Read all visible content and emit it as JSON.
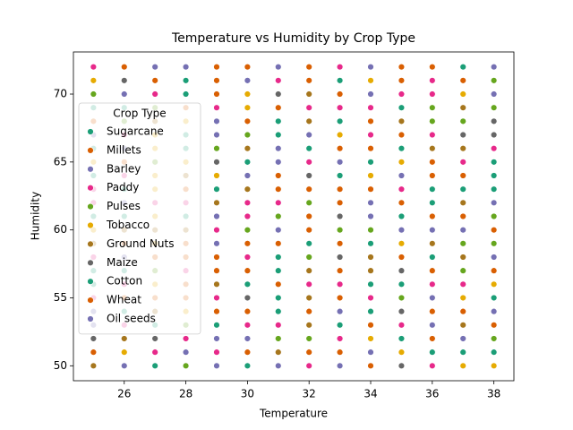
{
  "chart_data": {
    "type": "scatter",
    "title": "Temperature vs Humidity by Crop Type",
    "x_label": "Temperature",
    "y_label": "Humidity",
    "xlim": [
      24.35,
      38.65
    ],
    "ylim": [
      48.9,
      73.1
    ],
    "xticks": [
      26,
      28,
      30,
      32,
      34,
      36,
      38
    ],
    "yticks": [
      50,
      55,
      60,
      65,
      70
    ],
    "legend_title": "Crop Type",
    "legend_position": "upper-left",
    "series": [
      {
        "name": "Sugarcane",
        "color": "#1b9e77",
        "x": [
          26,
          26,
          26,
          26,
          26,
          28,
          28,
          28,
          28,
          28,
          30,
          30,
          30,
          32,
          32,
          34,
          34,
          34,
          34,
          36,
          36,
          36,
          36,
          38,
          38,
          38,
          38,
          38
        ],
        "y": [
          69,
          63,
          61,
          57,
          54,
          71,
          70,
          67,
          66,
          61,
          65,
          56,
          50,
          66,
          59,
          65,
          59,
          56,
          54,
          63,
          62,
          58,
          51,
          65,
          64,
          63,
          55,
          51
        ]
      },
      {
        "name": "Millets",
        "color": "#d95f02",
        "x": [
          26,
          26,
          26,
          26,
          28,
          28,
          28,
          28,
          28,
          28,
          30,
          30,
          30,
          30,
          30,
          30,
          32,
          32,
          32,
          32,
          32,
          32,
          32,
          34,
          34,
          34,
          34,
          34,
          36,
          36,
          36,
          36,
          36,
          36,
          36,
          38,
          38,
          38
        ],
        "y": [
          72,
          65,
          59,
          55,
          69,
          63,
          59,
          58,
          56,
          55,
          72,
          68,
          59,
          57,
          54,
          51,
          72,
          71,
          63,
          61,
          60,
          54,
          51,
          68,
          66,
          63,
          53,
          50,
          72,
          65,
          64,
          61,
          57,
          54,
          52,
          60,
          57,
          53
        ]
      },
      {
        "name": "Barley",
        "color": "#7570b3",
        "x": [
          26,
          26,
          26,
          26,
          26,
          28,
          28,
          30,
          30,
          30,
          32,
          34,
          34,
          34,
          34,
          34,
          36,
          36,
          36,
          38,
          38,
          38,
          38,
          38
        ],
        "y": [
          70,
          66,
          62,
          58,
          50,
          72,
          51,
          71,
          64,
          52,
          67,
          72,
          70,
          62,
          61,
          51,
          60,
          55,
          53,
          72,
          70,
          62,
          58,
          54
        ]
      },
      {
        "name": "Paddy",
        "color": "#e7298a",
        "x": [
          25,
          25,
          25,
          25,
          25,
          26,
          26,
          26,
          26,
          27,
          27,
          27,
          28,
          28,
          28,
          29,
          29,
          29,
          29,
          30,
          30,
          30,
          30,
          31,
          31,
          31,
          32,
          32,
          32,
          32,
          33,
          33,
          33,
          33,
          34,
          34,
          34,
          35,
          35,
          35,
          36,
          36,
          36,
          36,
          36,
          37,
          37,
          38
        ],
        "y": [
          72,
          63,
          62,
          58,
          55,
          67,
          64,
          56,
          53,
          70,
          62,
          51,
          62,
          57,
          52,
          69,
          60,
          55,
          51,
          62,
          61,
          58,
          53,
          71,
          62,
          53,
          69,
          65,
          56,
          50,
          72,
          69,
          56,
          52,
          69,
          67,
          55,
          70,
          63,
          53,
          71,
          70,
          67,
          56,
          50,
          65,
          56,
          66
        ]
      },
      {
        "name": "Pulses",
        "color": "#66a61e",
        "x": [
          25,
          26,
          27,
          27,
          27,
          28,
          28,
          29,
          30,
          30,
          31,
          31,
          32,
          32,
          32,
          33,
          34,
          35,
          36,
          36,
          37,
          37,
          37,
          38,
          38,
          38,
          38,
          38
        ],
        "y": [
          70,
          68,
          69,
          65,
          57,
          53,
          50,
          66,
          67,
          60,
          61,
          52,
          62,
          58,
          52,
          60,
          60,
          55,
          69,
          68,
          68,
          59,
          57,
          71,
          69,
          61,
          59,
          52
        ]
      },
      {
        "name": "Tobacco",
        "color": "#e6ab02",
        "x": [
          25,
          25,
          25,
          26,
          27,
          27,
          27,
          27,
          27,
          27,
          27,
          28,
          28,
          28,
          29,
          30,
          30,
          33,
          34,
          34,
          34,
          35,
          35,
          35,
          37,
          37,
          37,
          38,
          38
        ],
        "y": [
          71,
          65,
          60,
          51,
          67,
          66,
          64,
          63,
          61,
          59,
          56,
          68,
          65,
          54,
          64,
          70,
          69,
          67,
          71,
          64,
          52,
          65,
          59,
          51,
          70,
          55,
          50,
          56,
          50
        ]
      },
      {
        "name": "Ground Nuts",
        "color": "#a6761d",
        "x": [
          25,
          25,
          26,
          26,
          27,
          27,
          27,
          28,
          28,
          29,
          29,
          30,
          30,
          31,
          32,
          32,
          32,
          32,
          32,
          34,
          34,
          35,
          36,
          36,
          37,
          37,
          37,
          37,
          37
        ],
        "y": [
          59,
          50,
          60,
          52,
          68,
          60,
          54,
          64,
          60,
          62,
          56,
          66,
          63,
          51,
          70,
          68,
          57,
          55,
          53,
          58,
          57,
          68,
          66,
          59,
          69,
          66,
          62,
          58,
          53
        ]
      },
      {
        "name": "Maize",
        "color": "#666666",
        "x": [
          25,
          26,
          27,
          29,
          30,
          31,
          32,
          33,
          33,
          35,
          35,
          35,
          37,
          38,
          38
        ],
        "y": [
          52,
          71,
          52,
          65,
          55,
          70,
          64,
          61,
          58,
          57,
          54,
          50,
          67,
          68,
          67
        ]
      },
      {
        "name": "Cotton",
        "color": "#1b9e77",
        "x": [
          25,
          25,
          25,
          25,
          25,
          25,
          27,
          27,
          29,
          29,
          31,
          31,
          31,
          31,
          31,
          31,
          33,
          33,
          33,
          33,
          35,
          35,
          35,
          35,
          35,
          37,
          37,
          37
        ],
        "y": [
          69,
          66,
          64,
          61,
          57,
          56,
          53,
          50,
          63,
          53,
          68,
          67,
          58,
          57,
          55,
          54,
          71,
          68,
          64,
          53,
          69,
          66,
          61,
          56,
          52,
          72,
          63,
          51
        ]
      },
      {
        "name": "Wheat",
        "color": "#d95f02",
        "x": [
          25,
          25,
          27,
          27,
          27,
          29,
          29,
          29,
          29,
          29,
          29,
          31,
          31,
          31,
          31,
          31,
          33,
          33,
          33,
          33,
          33,
          33,
          33,
          33,
          35,
          35,
          35,
          35,
          35,
          37,
          37,
          37,
          37
        ],
        "y": [
          68,
          51,
          71,
          58,
          55,
          72,
          71,
          70,
          58,
          57,
          54,
          69,
          64,
          63,
          59,
          56,
          70,
          66,
          63,
          62,
          59,
          57,
          55,
          51,
          72,
          71,
          67,
          62,
          58,
          71,
          64,
          61,
          54
        ]
      },
      {
        "name": "Oil seeds",
        "color": "#7570b3",
        "x": [
          25,
          25,
          25,
          27,
          29,
          29,
          29,
          29,
          29,
          29,
          31,
          31,
          31,
          31,
          31,
          33,
          33,
          33,
          35,
          35,
          37,
          37
        ],
        "y": [
          67,
          54,
          53,
          72,
          68,
          67,
          61,
          59,
          52,
          50,
          72,
          66,
          65,
          60,
          50,
          65,
          54,
          50,
          64,
          60,
          60,
          52
        ]
      }
    ]
  }
}
